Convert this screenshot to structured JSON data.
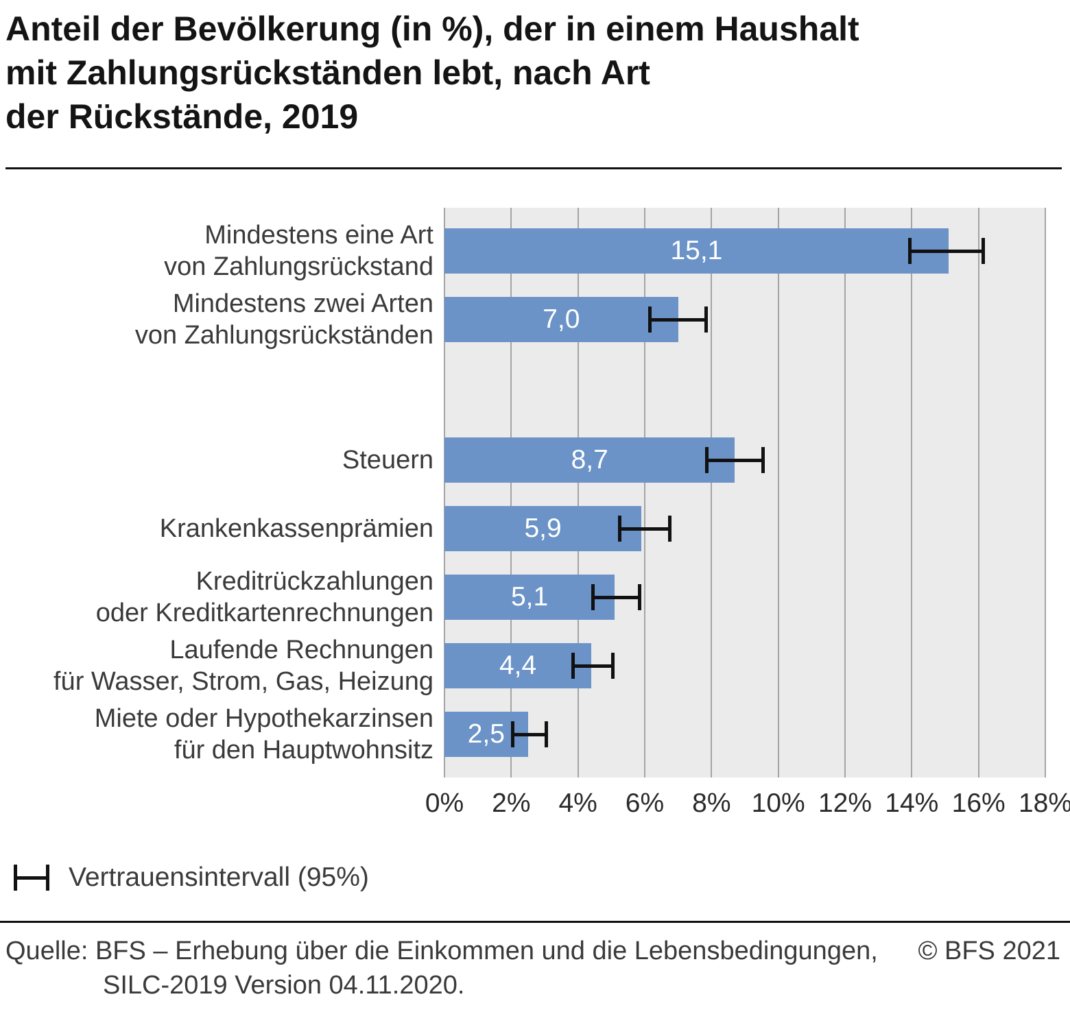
{
  "title_lines": [
    "Anteil der Bevölkerung (in %), der in einem Haushalt",
    "mit Zahlungsrückständen lebt, nach Art",
    "der Rückstände, 2019"
  ],
  "legend": {
    "label": "Vertrauensintervall (95%)"
  },
  "footer": {
    "source_line_1": "Quelle: BFS – Erhebung über die Einkommen und die Lebensbedingungen,",
    "source_line_2": "SILC-2019 Version 04.11.2020.",
    "copyright": "© BFS 2021"
  },
  "chart_data": {
    "type": "bar",
    "orientation": "horizontal",
    "title": "Anteil der Bevölkerung (in %), der in einem Haushalt mit Zahlungsrückständen lebt, nach Art der Rückstände, 2019",
    "xlabel": "",
    "ylabel": "",
    "xlim": [
      0,
      18
    ],
    "xticks": [
      0,
      2,
      4,
      6,
      8,
      10,
      12,
      14,
      16,
      18
    ],
    "xtick_labels": [
      "0%",
      "2%",
      "4%",
      "6%",
      "8%",
      "10%",
      "12%",
      "14%",
      "16%",
      "18%"
    ],
    "grid": true,
    "legend_position": "bottom-left",
    "bar_color": "#6B93C8",
    "plot_background": "#EBEBEB",
    "error_bar_color": "#111111",
    "categories": [
      "Mindestens eine Art von Zahlungsrückstand",
      "Mindestens zwei Arten von Zahlungsrückständen",
      "Steuern",
      "Krankenkassenprämien",
      "Kreditrückzahlungen oder Kreditkartenrechnungen",
      "Laufende Rechnungen für Wasser, Strom, Gas, Heizung",
      "Miete oder Hypothekarzinsen für den Hauptwohnsitz"
    ],
    "values": [
      15.1,
      7.0,
      8.7,
      5.9,
      5.1,
      4.4,
      2.5
    ],
    "bars": [
      {
        "label_lines": [
          "Mindestens eine Art",
          "von Zahlungsrückstand"
        ],
        "value": 15.1,
        "value_label": "15,1",
        "ci_low": 13.9,
        "ci_high": 16.2,
        "gap_before": false
      },
      {
        "label_lines": [
          "Mindestens zwei Arten",
          "von Zahlungsrückständen"
        ],
        "value": 7.0,
        "value_label": "7,0",
        "ci_low": 6.1,
        "ci_high": 7.9,
        "gap_before": false
      },
      {
        "label_lines": [
          "Steuern"
        ],
        "value": 8.7,
        "value_label": "8,7",
        "ci_low": 7.8,
        "ci_high": 9.6,
        "gap_before": true
      },
      {
        "label_lines": [
          "Krankenkassenprämien"
        ],
        "value": 5.9,
        "value_label": "5,9",
        "ci_low": 5.2,
        "ci_high": 6.8,
        "gap_before": false
      },
      {
        "label_lines": [
          "Kreditrückzahlungen",
          "oder Kreditkartenrechnungen"
        ],
        "value": 5.1,
        "value_label": "5,1",
        "ci_low": 4.4,
        "ci_high": 5.9,
        "gap_before": false
      },
      {
        "label_lines": [
          "Laufende Rechnungen",
          "für Wasser, Strom, Gas, Heizung"
        ],
        "value": 4.4,
        "value_label": "4,4",
        "ci_low": 3.8,
        "ci_high": 5.1,
        "gap_before": false
      },
      {
        "label_lines": [
          "Miete oder Hypothekarzinsen",
          "für den Hauptwohnsitz"
        ],
        "value": 2.5,
        "value_label": "2,5",
        "ci_low": 2.0,
        "ci_high": 3.1,
        "gap_before": false
      }
    ]
  }
}
